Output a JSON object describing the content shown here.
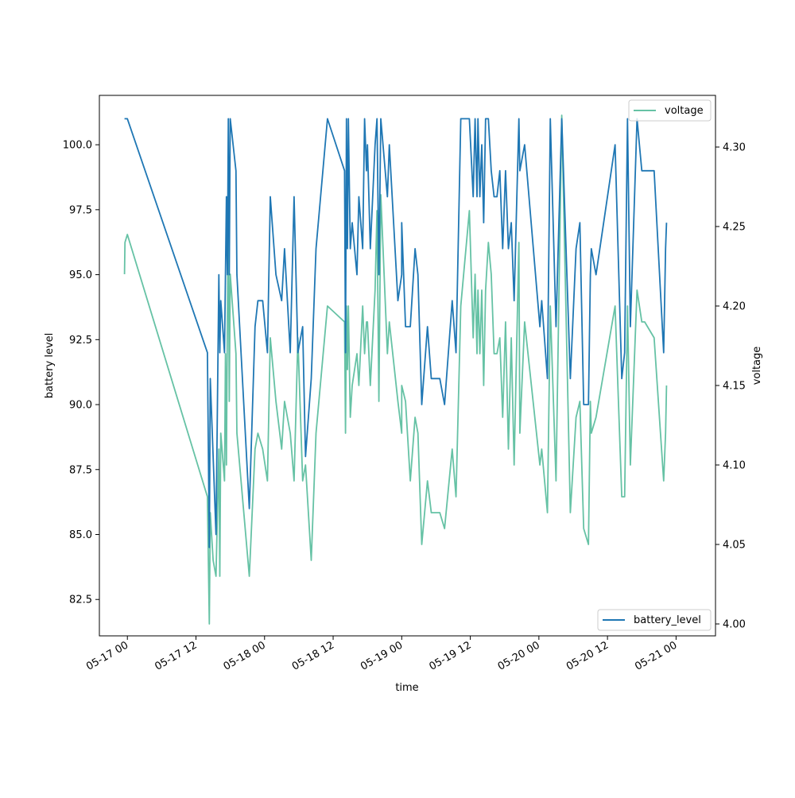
{
  "chart_data": {
    "type": "line",
    "xlabel": "time",
    "ylabel_left": "battery level",
    "ylabel_right": "voltage",
    "x_ticks": [
      "05-17 00",
      "05-17 12",
      "05-18 00",
      "05-18 12",
      "05-19 00",
      "05-19 12",
      "05-20 00",
      "05-20 12",
      "05-21 00"
    ],
    "y_left_ticks": [
      "82.5",
      "85.0",
      "87.5",
      "90.0",
      "92.5",
      "95.0",
      "97.5",
      "100.0"
    ],
    "y_right_ticks": [
      "4.00",
      "4.05",
      "4.10",
      "4.15",
      "4.20",
      "4.25",
      "4.30"
    ],
    "ylim_left": [
      81.1,
      101.9
    ],
    "ylim_right": [
      3.9925,
      4.3325
    ],
    "xlim": [
      "05-16 19:06",
      "05-21 06:54"
    ],
    "grid": false,
    "legend_placement": {
      "battery_level": "lower-right",
      "voltage": "upper-right"
    },
    "colors": {
      "battery_level": "#1f77b4",
      "voltage": "#66c2a5"
    },
    "series": [
      {
        "name": "battery_level",
        "axis": "left",
        "points": [
          [
            "05-16 23:30",
            101
          ],
          [
            "05-17 00:00",
            101
          ],
          [
            "05-17 14:00",
            92
          ],
          [
            "05-17 14:20",
            84.5
          ],
          [
            "05-17 14:30",
            91
          ],
          [
            "05-17 15:30",
            85
          ],
          [
            "05-17 16:00",
            95
          ],
          [
            "05-17 16:10",
            92
          ],
          [
            "05-17 16:20",
            94
          ],
          [
            "05-17 17:00",
            92
          ],
          [
            "05-17 17:20",
            98
          ],
          [
            "05-17 17:30",
            95
          ],
          [
            "05-17 17:40",
            101
          ],
          [
            "05-17 17:50",
            95
          ],
          [
            "05-17 18:00",
            101
          ],
          [
            "05-17 19:00",
            99
          ],
          [
            "05-17 19:10",
            95
          ],
          [
            "05-17 21:20",
            86
          ],
          [
            "05-17 22:20",
            93
          ],
          [
            "05-17 22:50",
            94
          ],
          [
            "05-17 23:40",
            94
          ],
          [
            "05-18 00:30",
            92
          ],
          [
            "05-18 01:00",
            98
          ],
          [
            "05-18 02:00",
            95
          ],
          [
            "05-18 03:00",
            94
          ],
          [
            "05-18 03:30",
            96
          ],
          [
            "05-18 04:30",
            92
          ],
          [
            "05-18 05:10",
            98
          ],
          [
            "05-18 05:50",
            92
          ],
          [
            "05-18 06:40",
            93
          ],
          [
            "05-18 07:10",
            88
          ],
          [
            "05-18 08:10",
            91
          ],
          [
            "05-18 09:00",
            96
          ],
          [
            "05-18 11:00",
            101
          ],
          [
            "05-18 14:00",
            99
          ],
          [
            "05-18 14:10",
            92
          ],
          [
            "05-18 14:20",
            101
          ],
          [
            "05-18 14:30",
            96
          ],
          [
            "05-18 14:40",
            101
          ],
          [
            "05-18 15:00",
            96
          ],
          [
            "05-18 15:20",
            97
          ],
          [
            "05-18 16:10",
            95
          ],
          [
            "05-18 16:30",
            98
          ],
          [
            "05-18 17:10",
            96
          ],
          [
            "05-18 17:30",
            101
          ],
          [
            "05-18 17:50",
            99
          ],
          [
            "05-18 18:00",
            100
          ],
          [
            "05-18 18:30",
            96
          ],
          [
            "05-18 19:20",
            100
          ],
          [
            "05-18 19:40",
            101
          ],
          [
            "05-18 20:00",
            95
          ],
          [
            "05-18 20:20",
            101
          ],
          [
            "05-18 21:30",
            98
          ],
          [
            "05-18 21:50",
            100
          ],
          [
            "05-18 23:20",
            94
          ],
          [
            "05-18 24:00",
            95
          ],
          [
            "05-19 00:00",
            97
          ],
          [
            "05-19 00:40",
            93
          ],
          [
            "05-19 01:30",
            93
          ],
          [
            "05-19 02:20",
            96
          ],
          [
            "05-19 02:50",
            95
          ],
          [
            "05-19 03:30",
            90
          ],
          [
            "05-19 04:30",
            93
          ],
          [
            "05-19 05:10",
            91
          ],
          [
            "05-19 06:40",
            91
          ],
          [
            "05-19 07:30",
            90
          ],
          [
            "05-19 08:50",
            94
          ],
          [
            "05-19 09:30",
            92
          ],
          [
            "05-19 10:20",
            101
          ],
          [
            "05-19 11:50",
            101
          ],
          [
            "05-19 12:30",
            98
          ],
          [
            "05-19 12:50",
            101
          ],
          [
            "05-19 13:10",
            98
          ],
          [
            "05-19 13:20",
            101
          ],
          [
            "05-19 13:40",
            98
          ],
          [
            "05-19 14:00",
            100
          ],
          [
            "05-19 14:20",
            97
          ],
          [
            "05-19 14:40",
            101
          ],
          [
            "05-19 15:10",
            101
          ],
          [
            "05-19 15:40",
            99
          ],
          [
            "05-19 16:10",
            98
          ],
          [
            "05-19 16:40",
            98
          ],
          [
            "05-19 17:10",
            99
          ],
          [
            "05-19 17:40",
            96
          ],
          [
            "05-19 18:10",
            99
          ],
          [
            "05-19 18:40",
            96
          ],
          [
            "05-19 19:10",
            97
          ],
          [
            "05-19 19:40",
            94
          ],
          [
            "05-19 20:30",
            101
          ],
          [
            "05-19 20:40",
            99
          ],
          [
            "05-19 21:30",
            100
          ],
          [
            "05-20 00:10",
            93
          ],
          [
            "05-20 00:30",
            94
          ],
          [
            "05-20 01:30",
            91
          ],
          [
            "05-20 02:00",
            101
          ],
          [
            "05-20 03:00",
            93
          ],
          [
            "05-20 04:00",
            101
          ],
          [
            "05-20 05:30",
            91
          ],
          [
            "05-20 06:30",
            96
          ],
          [
            "05-20 07:10",
            97
          ],
          [
            "05-20 07:50",
            90
          ],
          [
            "05-20 08:40",
            90
          ],
          [
            "05-20 09:00",
            95
          ],
          [
            "05-20 09:10",
            96
          ],
          [
            "05-20 10:00",
            95
          ],
          [
            "05-20 13:20",
            100
          ],
          [
            "05-20 14:30",
            91
          ],
          [
            "05-20 15:00",
            92
          ],
          [
            "05-20 15:30",
            101
          ],
          [
            "05-20 16:00",
            93
          ],
          [
            "05-20 17:10",
            101
          ],
          [
            "05-20 18:00",
            99
          ],
          [
            "05-20 18:30",
            99
          ],
          [
            "05-20 20:10",
            99
          ],
          [
            "05-20 21:50",
            92
          ],
          [
            "05-20 22:10",
            96
          ],
          [
            "05-20 22:20",
            97
          ]
        ]
      },
      {
        "name": "voltage",
        "axis": "right",
        "points": [
          [
            "05-16 23:30",
            4.22
          ],
          [
            "05-16 23:35",
            4.24
          ],
          [
            "05-17 00:00",
            4.245
          ],
          [
            "05-17 14:00",
            4.08
          ],
          [
            "05-17 14:20",
            4.0
          ],
          [
            "05-17 14:30",
            4.07
          ],
          [
            "05-17 15:00",
            4.04
          ],
          [
            "05-17 15:30",
            4.03
          ],
          [
            "05-17 16:00",
            4.11
          ],
          [
            "05-17 16:10",
            4.03
          ],
          [
            "05-17 16:20",
            4.12
          ],
          [
            "05-17 17:00",
            4.09
          ],
          [
            "05-17 17:10",
            4.17
          ],
          [
            "05-17 17:20",
            4.1
          ],
          [
            "05-17 17:30",
            4.19
          ],
          [
            "05-17 17:40",
            4.26
          ],
          [
            "05-17 17:50",
            4.14
          ],
          [
            "05-17 18:00",
            4.22
          ],
          [
            "05-17 19:00",
            4.17
          ],
          [
            "05-17 19:10",
            4.12
          ],
          [
            "05-17 21:20",
            4.03
          ],
          [
            "05-17 22:20",
            4.11
          ],
          [
            "05-17 22:50",
            4.12
          ],
          [
            "05-17 23:40",
            4.11
          ],
          [
            "05-18 00:30",
            4.09
          ],
          [
            "05-18 01:00",
            4.18
          ],
          [
            "05-18 02:00",
            4.14
          ],
          [
            "05-18 03:00",
            4.11
          ],
          [
            "05-18 03:30",
            4.14
          ],
          [
            "05-18 04:30",
            4.12
          ],
          [
            "05-18 05:10",
            4.09
          ],
          [
            "05-18 05:50",
            4.18
          ],
          [
            "05-18 06:40",
            4.09
          ],
          [
            "05-18 07:10",
            4.1
          ],
          [
            "05-18 08:10",
            4.04
          ],
          [
            "05-18 09:00",
            4.12
          ],
          [
            "05-18 11:00",
            4.2
          ],
          [
            "05-18 14:00",
            4.19
          ],
          [
            "05-18 14:10",
            4.12
          ],
          [
            "05-18 14:20",
            4.2
          ],
          [
            "05-18 14:30",
            4.16
          ],
          [
            "05-18 14:40",
            4.2
          ],
          [
            "05-18 15:00",
            4.13
          ],
          [
            "05-18 15:20",
            4.15
          ],
          [
            "05-18 16:10",
            4.17
          ],
          [
            "05-18 16:30",
            4.15
          ],
          [
            "05-18 17:10",
            4.2
          ],
          [
            "05-18 17:30",
            4.17
          ],
          [
            "05-18 17:50",
            4.19
          ],
          [
            "05-18 18:00",
            4.19
          ],
          [
            "05-18 18:30",
            4.15
          ],
          [
            "05-18 19:20",
            4.21
          ],
          [
            "05-18 19:40",
            4.26
          ],
          [
            "05-18 20:00",
            4.14
          ],
          [
            "05-18 20:20",
            4.27
          ],
          [
            "05-18 21:30",
            4.17
          ],
          [
            "05-18 21:50",
            4.19
          ],
          [
            "05-18 23:20",
            4.14
          ],
          [
            "05-18 24:00",
            4.12
          ],
          [
            "05-19 00:00",
            4.15
          ],
          [
            "05-19 00:40",
            4.14
          ],
          [
            "05-19 01:30",
            4.09
          ],
          [
            "05-19 02:20",
            4.13
          ],
          [
            "05-19 02:50",
            4.12
          ],
          [
            "05-19 03:30",
            4.05
          ],
          [
            "05-19 04:30",
            4.09
          ],
          [
            "05-19 05:10",
            4.07
          ],
          [
            "05-19 06:40",
            4.07
          ],
          [
            "05-19 07:30",
            4.06
          ],
          [
            "05-19 08:50",
            4.11
          ],
          [
            "05-19 09:30",
            4.08
          ],
          [
            "05-19 10:20",
            4.2
          ],
          [
            "05-19 11:50",
            4.26
          ],
          [
            "05-19 12:30",
            4.18
          ],
          [
            "05-19 12:50",
            4.22
          ],
          [
            "05-19 13:10",
            4.17
          ],
          [
            "05-19 13:20",
            4.21
          ],
          [
            "05-19 13:40",
            4.17
          ],
          [
            "05-19 14:00",
            4.21
          ],
          [
            "05-19 14:20",
            4.15
          ],
          [
            "05-19 14:40",
            4.21
          ],
          [
            "05-19 15:10",
            4.24
          ],
          [
            "05-19 15:40",
            4.22
          ],
          [
            "05-19 16:10",
            4.17
          ],
          [
            "05-19 16:40",
            4.17
          ],
          [
            "05-19 17:10",
            4.18
          ],
          [
            "05-19 17:40",
            4.13
          ],
          [
            "05-19 18:10",
            4.19
          ],
          [
            "05-19 18:40",
            4.11
          ],
          [
            "05-19 19:10",
            4.18
          ],
          [
            "05-19 19:40",
            4.1
          ],
          [
            "05-19 20:30",
            4.24
          ],
          [
            "05-19 20:40",
            4.12
          ],
          [
            "05-19 21:30",
            4.19
          ],
          [
            "05-20 00:10",
            4.1
          ],
          [
            "05-20 00:30",
            4.11
          ],
          [
            "05-20 01:30",
            4.07
          ],
          [
            "05-20 02:00",
            4.2
          ],
          [
            "05-20 03:00",
            4.09
          ],
          [
            "05-20 04:00",
            4.32
          ],
          [
            "05-20 05:30",
            4.07
          ],
          [
            "05-20 06:30",
            4.13
          ],
          [
            "05-20 07:10",
            4.14
          ],
          [
            "05-20 07:50",
            4.06
          ],
          [
            "05-20 08:40",
            4.05
          ],
          [
            "05-20 09:00",
            4.14
          ],
          [
            "05-20 09:10",
            4.12
          ],
          [
            "05-20 10:00",
            4.13
          ],
          [
            "05-20 13:20",
            4.2
          ],
          [
            "05-20 14:30",
            4.08
          ],
          [
            "05-20 15:00",
            4.08
          ],
          [
            "05-20 15:30",
            4.2
          ],
          [
            "05-20 16:00",
            4.1
          ],
          [
            "05-20 17:10",
            4.21
          ],
          [
            "05-20 18:00",
            4.19
          ],
          [
            "05-20 18:30",
            4.19
          ],
          [
            "05-20 20:10",
            4.18
          ],
          [
            "05-20 21:50",
            4.09
          ],
          [
            "05-20 22:10",
            4.12
          ],
          [
            "05-20 22:20",
            4.15
          ]
        ]
      }
    ]
  }
}
